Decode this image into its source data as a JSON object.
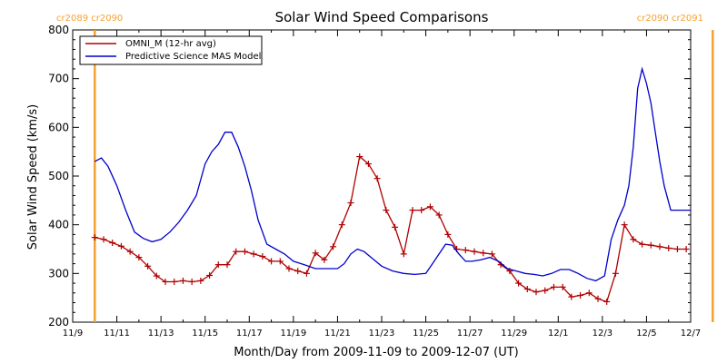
{
  "chart_data": {
    "type": "line",
    "title": "Solar Wind Speed Comparisons",
    "xlabel": "Month/Day from 2009-11-09 to 2009-12-07 (UT)",
    "ylabel": "Solar Wind Speed (km/s)",
    "xlim": [
      0,
      28
    ],
    "ylim": [
      200,
      800
    ],
    "yticks": [
      200,
      300,
      400,
      500,
      600,
      700,
      800
    ],
    "xticks": [
      {
        "day": 0,
        "label": "11/9"
      },
      {
        "day": 2,
        "label": "11/11"
      },
      {
        "day": 4,
        "label": "11/13"
      },
      {
        "day": 6,
        "label": "11/15"
      },
      {
        "day": 8,
        "label": "11/17"
      },
      {
        "day": 10,
        "label": "11/19"
      },
      {
        "day": 12,
        "label": "11/21"
      },
      {
        "day": 14,
        "label": "11/23"
      },
      {
        "day": 16,
        "label": "11/25"
      },
      {
        "day": 18,
        "label": "11/27"
      },
      {
        "day": 20,
        "label": "11/29"
      },
      {
        "day": 22,
        "label": "12/1"
      },
      {
        "day": 24,
        "label": "12/3"
      },
      {
        "day": 26,
        "label": "12/5"
      },
      {
        "day": 28,
        "label": "12/7"
      }
    ],
    "carrington_markers": [
      {
        "day": 1.0,
        "label": "cr2089 cr2090",
        "color": "#f5a030",
        "align": "left"
      },
      {
        "day": 29.0,
        "label": "cr2090 cr2091",
        "color": "#f5a030",
        "align": "right"
      }
    ],
    "legend_position": "top-left",
    "series": [
      {
        "name": "OMNI_M (12-hr avg)",
        "color": "#b00000",
        "markers": true,
        "x": [
          1.0,
          1.4,
          1.8,
          2.2,
          2.6,
          3.0,
          3.4,
          3.8,
          4.2,
          4.6,
          5.0,
          5.4,
          5.8,
          6.2,
          6.6,
          7.0,
          7.4,
          7.8,
          8.2,
          8.6,
          9.0,
          9.4,
          9.8,
          10.2,
          10.6,
          11.0,
          11.4,
          11.8,
          12.2,
          12.6,
          13.0,
          13.4,
          13.8,
          14.2,
          14.6,
          15.0,
          15.4,
          15.8,
          16.2,
          16.6,
          17.0,
          17.4,
          17.8,
          18.2,
          18.6,
          19.0,
          19.4,
          19.8,
          20.2,
          20.6,
          21.0,
          21.4,
          21.8,
          22.2,
          22.6,
          23.0,
          23.4,
          23.8,
          24.2,
          24.6,
          25.0,
          25.4,
          25.8,
          26.2,
          26.6,
          27.0,
          27.4,
          27.8
        ],
        "values": [
          374,
          370,
          363,
          356,
          345,
          333,
          315,
          295,
          283,
          283,
          285,
          283,
          285,
          296,
          318,
          318,
          345,
          345,
          340,
          335,
          325,
          325,
          310,
          305,
          300,
          342,
          328,
          355,
          400,
          445,
          540,
          525,
          495,
          430,
          395,
          340,
          430,
          430,
          437,
          420,
          380,
          350,
          348,
          345,
          342,
          340,
          318,
          305,
          280,
          268,
          262,
          265,
          272,
          272,
          252,
          255,
          260,
          248,
          242,
          300,
          400,
          370,
          360,
          358,
          355,
          352,
          350,
          350
        ]
      },
      {
        "name": "Predictive Science MAS Model",
        "color": "#0000cc",
        "markers": false,
        "x": [
          1.0,
          1.3,
          1.6,
          2.0,
          2.4,
          2.8,
          3.2,
          3.6,
          4.0,
          4.4,
          4.8,
          5.2,
          5.6,
          6.0,
          6.3,
          6.6,
          6.9,
          7.2,
          7.5,
          7.8,
          8.1,
          8.4,
          8.8,
          9.2,
          9.6,
          10.0,
          10.5,
          11.0,
          11.5,
          12.0,
          12.3,
          12.6,
          12.9,
          13.2,
          13.6,
          14.0,
          14.5,
          15.0,
          15.5,
          16.0,
          16.3,
          16.6,
          16.9,
          17.2,
          17.5,
          17.8,
          18.1,
          18.5,
          18.9,
          19.3,
          19.7,
          20.1,
          20.5,
          20.9,
          21.3,
          21.7,
          22.1,
          22.5,
          22.9,
          23.3,
          23.7,
          24.1,
          24.4,
          24.7,
          25.0,
          25.2,
          25.4,
          25.6,
          25.8,
          26.0,
          26.2,
          26.4,
          26.6,
          26.8,
          27.1,
          27.4,
          27.7,
          28.0
        ],
        "values": [
          530,
          537,
          520,
          480,
          430,
          385,
          372,
          365,
          370,
          385,
          405,
          430,
          460,
          525,
          550,
          565,
          590,
          590,
          560,
          520,
          470,
          410,
          360,
          350,
          340,
          325,
          318,
          310,
          310,
          310,
          320,
          340,
          350,
          345,
          330,
          315,
          305,
          300,
          298,
          300,
          320,
          340,
          360,
          358,
          340,
          325,
          325,
          328,
          333,
          325,
          310,
          305,
          300,
          298,
          295,
          300,
          308,
          308,
          300,
          290,
          285,
          295,
          370,
          410,
          440,
          480,
          560,
          680,
          720,
          690,
          650,
          590,
          530,
          480,
          430,
          430,
          430,
          430
        ]
      }
    ]
  }
}
